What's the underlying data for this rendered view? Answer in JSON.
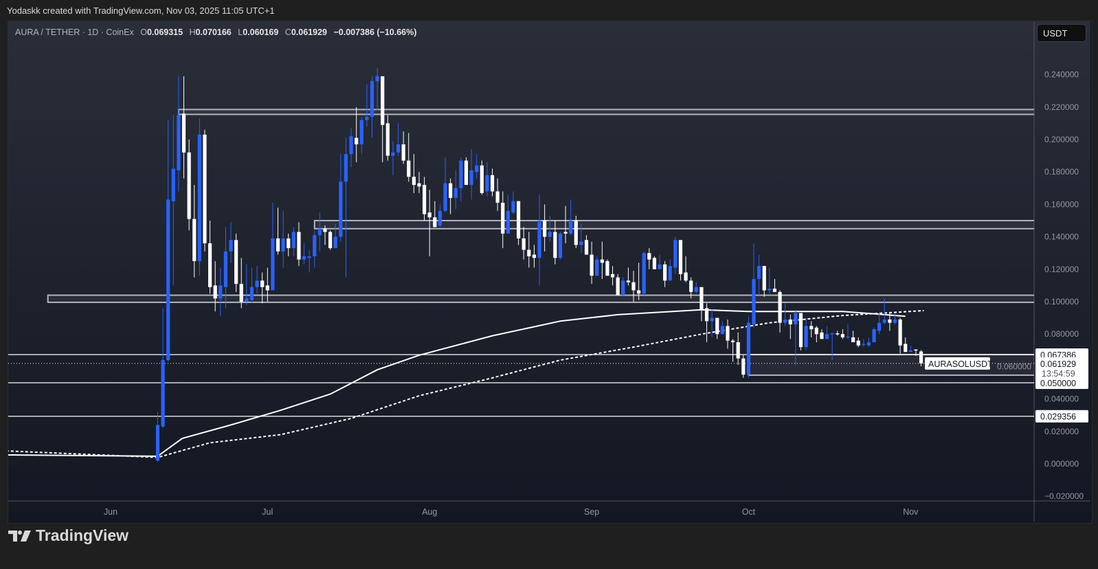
{
  "credit": "Yodaskk created with TradingView.com, Nov 03, 2025 11:05 UTC+1",
  "legend": {
    "symbol": "AURA / TETHER · 1D · CoinEx",
    "o_label": "O",
    "o": "0.069315",
    "h_label": "H",
    "h": "0.070166",
    "l_label": "L",
    "l": "0.060169",
    "c_label": "C",
    "c": "0.061929",
    "change": "−0.007386 (−10.66%)"
  },
  "currency_button": "USDT",
  "footer_brand": "TradingView",
  "colors": {
    "up": "#2962ff",
    "down": "#ffffff",
    "zone_border": "#b2b5be",
    "ma": "#ffffff"
  },
  "chart_data": {
    "type": "candlestick",
    "title": "AURA / TETHER · 1D · CoinEx",
    "ylim": [
      -0.02,
      0.25
    ],
    "y_ticks": [
      "0.240000",
      "0.220000",
      "0.200000",
      "0.180000",
      "0.160000",
      "0.140000",
      "0.120000",
      "0.100000",
      "0.080000",
      "0.060000",
      "0.040000",
      "0.020000",
      "0.000000",
      "−0.020000"
    ],
    "y_tick_values": [
      0.24,
      0.22,
      0.2,
      0.18,
      0.16,
      0.14,
      0.12,
      0.1,
      0.08,
      0.06,
      0.04,
      0.02,
      0,
      -0.02
    ],
    "x_ticks": [
      {
        "label": "Jun",
        "day": 0
      },
      {
        "label": "Jul",
        "day": 30
      },
      {
        "label": "Aug",
        "day": 61
      },
      {
        "label": "Sep",
        "day": 92
      },
      {
        "label": "Oct",
        "day": 122
      },
      {
        "label": "Nov",
        "day": 153
      }
    ],
    "x_unit": "days since Jun 1",
    "first_candle_day": 9,
    "candles_ohlc": [
      [
        0.002,
        0.032,
        0.001,
        0.024
      ],
      [
        0.023,
        0.096,
        0.022,
        0.064
      ],
      [
        0.064,
        0.212,
        0.063,
        0.163
      ],
      [
        0.162,
        0.215,
        0.11,
        0.182
      ],
      [
        0.181,
        0.239,
        0.168,
        0.215
      ],
      [
        0.216,
        0.239,
        0.176,
        0.192
      ],
      [
        0.192,
        0.2,
        0.144,
        0.151
      ],
      [
        0.151,
        0.172,
        0.115,
        0.125
      ],
      [
        0.125,
        0.213,
        0.116,
        0.203
      ],
      [
        0.203,
        0.206,
        0.131,
        0.136
      ],
      [
        0.136,
        0.15,
        0.105,
        0.109
      ],
      [
        0.11,
        0.125,
        0.094,
        0.102
      ],
      [
        0.102,
        0.121,
        0.091,
        0.11
      ],
      [
        0.109,
        0.146,
        0.096,
        0.131
      ],
      [
        0.131,
        0.149,
        0.124,
        0.138
      ],
      [
        0.138,
        0.142,
        0.106,
        0.111
      ],
      [
        0.111,
        0.127,
        0.096,
        0.1
      ],
      [
        0.1,
        0.123,
        0.098,
        0.102
      ],
      [
        0.101,
        0.121,
        0.099,
        0.109
      ],
      [
        0.109,
        0.122,
        0.105,
        0.113
      ],
      [
        0.113,
        0.118,
        0.099,
        0.109
      ],
      [
        0.11,
        0.121,
        0.1,
        0.107
      ],
      [
        0.107,
        0.161,
        0.107,
        0.139
      ],
      [
        0.139,
        0.158,
        0.129,
        0.131
      ],
      [
        0.131,
        0.156,
        0.121,
        0.139
      ],
      [
        0.139,
        0.142,
        0.128,
        0.133
      ],
      [
        0.133,
        0.146,
        0.128,
        0.143
      ],
      [
        0.143,
        0.149,
        0.122,
        0.126
      ],
      [
        0.126,
        0.136,
        0.123,
        0.128
      ],
      [
        0.127,
        0.132,
        0.118,
        0.128
      ],
      [
        0.128,
        0.144,
        0.121,
        0.141
      ],
      [
        0.141,
        0.155,
        0.131,
        0.145
      ],
      [
        0.145,
        0.147,
        0.135,
        0.143
      ],
      [
        0.143,
        0.144,
        0.132,
        0.133
      ],
      [
        0.133,
        0.148,
        0.133,
        0.14
      ],
      [
        0.14,
        0.191,
        0.137,
        0.174
      ],
      [
        0.174,
        0.201,
        0.115,
        0.191
      ],
      [
        0.191,
        0.207,
        0.183,
        0.202
      ],
      [
        0.201,
        0.22,
        0.186,
        0.197
      ],
      [
        0.197,
        0.214,
        0.191,
        0.212
      ],
      [
        0.212,
        0.234,
        0.208,
        0.214
      ],
      [
        0.214,
        0.239,
        0.201,
        0.236
      ],
      [
        0.236,
        0.244,
        0.218,
        0.239
      ],
      [
        0.239,
        0.239,
        0.186,
        0.209
      ],
      [
        0.21,
        0.215,
        0.187,
        0.19
      ],
      [
        0.19,
        0.199,
        0.178,
        0.192
      ],
      [
        0.192,
        0.21,
        0.19,
        0.197
      ],
      [
        0.197,
        0.205,
        0.185,
        0.187
      ],
      [
        0.187,
        0.204,
        0.174,
        0.177
      ],
      [
        0.177,
        0.191,
        0.167,
        0.172
      ],
      [
        0.173,
        0.18,
        0.167,
        0.171
      ],
      [
        0.172,
        0.177,
        0.15,
        0.154
      ],
      [
        0.155,
        0.169,
        0.128,
        0.152
      ],
      [
        0.152,
        0.162,
        0.146,
        0.146
      ],
      [
        0.147,
        0.16,
        0.146,
        0.156
      ],
      [
        0.156,
        0.189,
        0.155,
        0.173
      ],
      [
        0.173,
        0.176,
        0.154,
        0.164
      ],
      [
        0.164,
        0.181,
        0.157,
        0.17
      ],
      [
        0.17,
        0.189,
        0.162,
        0.187
      ],
      [
        0.187,
        0.189,
        0.172,
        0.172
      ],
      [
        0.172,
        0.194,
        0.163,
        0.181
      ],
      [
        0.18,
        0.191,
        0.176,
        0.184
      ],
      [
        0.184,
        0.187,
        0.166,
        0.167
      ],
      [
        0.168,
        0.186,
        0.165,
        0.178
      ],
      [
        0.178,
        0.182,
        0.165,
        0.168
      ],
      [
        0.168,
        0.176,
        0.156,
        0.161
      ],
      [
        0.161,
        0.168,
        0.133,
        0.142
      ],
      [
        0.142,
        0.166,
        0.142,
        0.156
      ],
      [
        0.155,
        0.168,
        0.154,
        0.162
      ],
      [
        0.162,
        0.162,
        0.135,
        0.139
      ],
      [
        0.139,
        0.146,
        0.126,
        0.132
      ],
      [
        0.132,
        0.143,
        0.121,
        0.128
      ],
      [
        0.129,
        0.135,
        0.121,
        0.127
      ],
      [
        0.127,
        0.166,
        0.11,
        0.15
      ],
      [
        0.15,
        0.16,
        0.131,
        0.14
      ],
      [
        0.14,
        0.153,
        0.137,
        0.143
      ],
      [
        0.143,
        0.15,
        0.123,
        0.127
      ],
      [
        0.127,
        0.143,
        0.126,
        0.142
      ],
      [
        0.143,
        0.159,
        0.136,
        0.142
      ],
      [
        0.142,
        0.163,
        0.141,
        0.15
      ],
      [
        0.15,
        0.153,
        0.133,
        0.135
      ],
      [
        0.135,
        0.148,
        0.13,
        0.137
      ],
      [
        0.138,
        0.141,
        0.129,
        0.129
      ],
      [
        0.129,
        0.137,
        0.111,
        0.116
      ],
      [
        0.116,
        0.128,
        0.116,
        0.126
      ],
      [
        0.126,
        0.137,
        0.114,
        0.124
      ],
      [
        0.125,
        0.126,
        0.116,
        0.116
      ],
      [
        0.117,
        0.122,
        0.11,
        0.115
      ],
      [
        0.115,
        0.117,
        0.104,
        0.104
      ],
      [
        0.104,
        0.115,
        0.104,
        0.113
      ],
      [
        0.113,
        0.121,
        0.11,
        0.112
      ],
      [
        0.112,
        0.119,
        0.1,
        0.107
      ],
      [
        0.107,
        0.124,
        0.101,
        0.105
      ],
      [
        0.105,
        0.131,
        0.104,
        0.13
      ],
      [
        0.13,
        0.133,
        0.12,
        0.126
      ],
      [
        0.127,
        0.128,
        0.12,
        0.12
      ],
      [
        0.12,
        0.129,
        0.12,
        0.123
      ],
      [
        0.123,
        0.125,
        0.109,
        0.113
      ],
      [
        0.113,
        0.126,
        0.113,
        0.122
      ],
      [
        0.121,
        0.14,
        0.117,
        0.138
      ],
      [
        0.138,
        0.138,
        0.113,
        0.117
      ],
      [
        0.118,
        0.128,
        0.112,
        0.113
      ],
      [
        0.113,
        0.115,
        0.102,
        0.106
      ],
      [
        0.106,
        0.112,
        0.105,
        0.109
      ],
      [
        0.109,
        0.109,
        0.088,
        0.095
      ],
      [
        0.096,
        0.099,
        0.075,
        0.088
      ],
      [
        0.088,
        0.095,
        0.078,
        0.09
      ],
      [
        0.09,
        0.09,
        0.077,
        0.08
      ],
      [
        0.08,
        0.088,
        0.08,
        0.085
      ],
      [
        0.085,
        0.089,
        0.071,
        0.076
      ],
      [
        0.076,
        0.077,
        0.063,
        0.075
      ],
      [
        0.075,
        0.081,
        0.061,
        0.065
      ],
      [
        0.065,
        0.067,
        0.053,
        0.055
      ],
      [
        0.055,
        0.091,
        0.053,
        0.087
      ],
      [
        0.086,
        0.136,
        0.084,
        0.114
      ],
      [
        0.114,
        0.129,
        0.104,
        0.122
      ],
      [
        0.122,
        0.122,
        0.103,
        0.107
      ],
      [
        0.107,
        0.121,
        0.105,
        0.108
      ],
      [
        0.108,
        0.114,
        0.106,
        0.106
      ],
      [
        0.106,
        0.107,
        0.081,
        0.087
      ],
      [
        0.087,
        0.099,
        0.085,
        0.089
      ],
      [
        0.089,
        0.092,
        0.077,
        0.086
      ],
      [
        0.086,
        0.095,
        0.061,
        0.093
      ],
      [
        0.093,
        0.093,
        0.07,
        0.072
      ],
      [
        0.072,
        0.09,
        0.07,
        0.085
      ],
      [
        0.085,
        0.088,
        0.078,
        0.083
      ],
      [
        0.084,
        0.085,
        0.075,
        0.08
      ],
      [
        0.081,
        0.083,
        0.077,
        0.077
      ],
      [
        0.077,
        0.085,
        0.077,
        0.08
      ],
      [
        0.08,
        0.081,
        0.064,
        0.0805
      ],
      [
        0.0805,
        0.082,
        0.079,
        0.08
      ],
      [
        0.08,
        0.083,
        0.077,
        0.078
      ],
      [
        0.078,
        0.086,
        0.077,
        0.0785
      ],
      [
        0.078,
        0.082,
        0.075,
        0.075
      ],
      [
        0.076,
        0.078,
        0.072,
        0.073
      ],
      [
        0.0735,
        0.077,
        0.072,
        0.074
      ],
      [
        0.073,
        0.078,
        0.072,
        0.075
      ],
      [
        0.075,
        0.084,
        0.075,
        0.083
      ],
      [
        0.082,
        0.093,
        0.08,
        0.087
      ],
      [
        0.087,
        0.102,
        0.086,
        0.089
      ],
      [
        0.089,
        0.093,
        0.082,
        0.087
      ],
      [
        0.087,
        0.093,
        0.086,
        0.089
      ],
      [
        0.089,
        0.09,
        0.068,
        0.073
      ],
      [
        0.074,
        0.078,
        0.069,
        0.069
      ],
      [
        0.069,
        0.073,
        0.069,
        0.07
      ],
      [
        0.0705,
        0.0707,
        0.0665,
        0.07
      ],
      [
        0.069315,
        0.070166,
        0.060169,
        0.061929
      ]
    ],
    "moving_averages": [
      {
        "style": "solid",
        "points": [
          [
            -20,
            0.0055
          ],
          [
            9,
            0.0047
          ],
          [
            13.7,
            0.0157
          ],
          [
            23,
            0.024
          ],
          [
            32.5,
            0.033
          ],
          [
            42,
            0.043
          ],
          [
            51,
            0.058
          ],
          [
            59,
            0.067
          ],
          [
            73,
            0.079
          ],
          [
            86,
            0.088
          ],
          [
            97,
            0.092
          ],
          [
            113,
            0.095
          ],
          [
            122,
            0.094
          ],
          [
            140,
            0.094
          ],
          [
            152,
            0.091
          ]
        ]
      },
      {
        "style": "dashed",
        "points": [
          [
            -20,
            0.008
          ],
          [
            9,
            0.004
          ],
          [
            19,
            0.013
          ],
          [
            32.5,
            0.018
          ],
          [
            46,
            0.028
          ],
          [
            59,
            0.042
          ],
          [
            73,
            0.053
          ],
          [
            86,
            0.064
          ],
          [
            100,
            0.072
          ],
          [
            113,
            0.08
          ],
          [
            126,
            0.087
          ],
          [
            140,
            0.0915
          ],
          [
            155.5,
            0.0945
          ]
        ]
      }
    ],
    "zones": [
      {
        "low": 0.2155,
        "high": 0.2185,
        "start_day": 13
      },
      {
        "low": 0.145,
        "high": 0.15,
        "start_day": 39
      },
      {
        "low": 0.0996,
        "high": 0.104,
        "start_day": -12
      },
      {
        "low": 0.0547,
        "high": 0.0674,
        "start_day": 122
      }
    ],
    "levels": [
      {
        "value": 0.067386,
        "label": "0.067386",
        "style": "solid"
      },
      {
        "value": 0.05,
        "label": "0.050000",
        "style": "solid"
      },
      {
        "value": 0.029356,
        "label": "0.029356",
        "style": "solid"
      }
    ],
    "last_price": {
      "value": 0.061929,
      "label": "0.061929",
      "countdown": "13:54:59",
      "symbol_tag": "AURASOLUSDT"
    }
  }
}
